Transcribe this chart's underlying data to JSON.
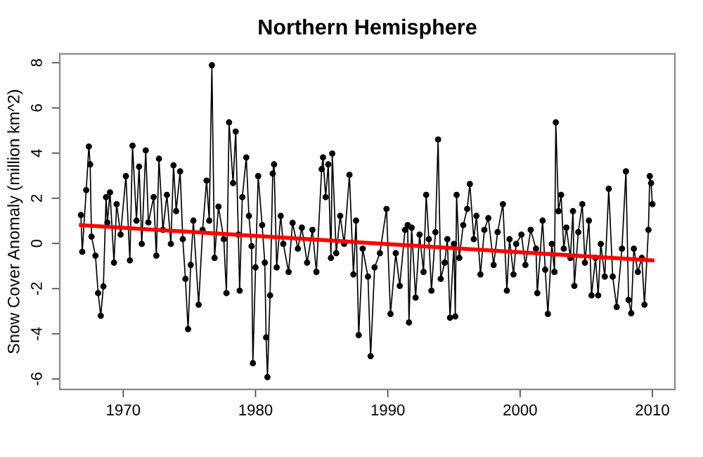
{
  "chart_data": {
    "type": "line",
    "title": "Northern Hemisphere",
    "ylabel": "Snow Cover Anomaly (million km^2)",
    "xlim": [
      1965.2,
      2011.7
    ],
    "ylim": [
      -6.46,
      8.39
    ],
    "xticks": [
      1970,
      1980,
      1990,
      2000,
      2010
    ],
    "yticks": [
      -6,
      -4,
      -2,
      0,
      2,
      4,
      6,
      8
    ],
    "grid": false,
    "line_style": "solid",
    "series": [
      {
        "color": "#000000",
        "marker": "circle",
        "x": [
          1966.8,
          1966.9,
          1967.2,
          1967.4,
          1967.5,
          1967.6,
          1967.9,
          1968.1,
          1968.3,
          1968.5,
          1968.7,
          1968.8,
          1969.0,
          1969.3,
          1969.5,
          1969.8,
          1970.2,
          1970.5,
          1970.7,
          1971.0,
          1971.2,
          1971.4,
          1971.7,
          1971.9,
          1972.3,
          1972.5,
          1972.7,
          1973.0,
          1973.3,
          1973.6,
          1973.8,
          1974.0,
          1974.3,
          1974.5,
          1974.7,
          1974.9,
          1975.1,
          1975.3,
          1975.7,
          1976.0,
          1976.3,
          1976.5,
          1976.7,
          1976.9,
          1977.2,
          1977.6,
          1977.8,
          1978.0,
          1978.3,
          1978.5,
          1978.7,
          1978.8,
          1979.0,
          1979.3,
          1979.5,
          1979.7,
          1979.8,
          1980.0,
          1980.2,
          1980.5,
          1980.7,
          1980.8,
          1980.9,
          1981.1,
          1981.3,
          1981.4,
          1981.6,
          1981.9,
          1982.1,
          1982.5,
          1982.8,
          1983.2,
          1983.5,
          1983.9,
          1984.3,
          1984.6,
          1985.0,
          1985.1,
          1985.3,
          1985.5,
          1985.7,
          1985.8,
          1986.1,
          1986.4,
          1986.7,
          1987.1,
          1987.4,
          1987.6,
          1987.8,
          1988.1,
          1988.5,
          1988.7,
          1989.0,
          1989.4,
          1989.9,
          1990.2,
          1990.6,
          1990.9,
          1991.3,
          1991.5,
          1991.6,
          1991.8,
          1992.1,
          1992.4,
          1992.7,
          1992.9,
          1993.1,
          1993.3,
          1993.6,
          1993.8,
          1994.0,
          1994.3,
          1994.5,
          1994.7,
          1995.0,
          1995.1,
          1995.2,
          1995.4,
          1995.7,
          1996.0,
          1996.2,
          1996.5,
          1996.7,
          1997.0,
          1997.3,
          1997.6,
          1998.0,
          1998.3,
          1998.7,
          1999.0,
          1999.2,
          1999.5,
          1999.7,
          2000.1,
          2000.4,
          2000.8,
          2001.2,
          2001.3,
          2001.7,
          2001.9,
          2002.1,
          2002.4,
          2002.6,
          2002.7,
          2002.9,
          2003.1,
          2003.3,
          2003.5,
          2003.8,
          2004.0,
          2004.1,
          2004.4,
          2004.7,
          2004.9,
          2005.2,
          2005.4,
          2005.7,
          2005.9,
          2006.1,
          2006.4,
          2006.7,
          2007.0,
          2007.3,
          2007.7,
          2008.0,
          2008.2,
          2008.4,
          2008.6,
          2008.9,
          2009.2,
          2009.4,
          2009.7,
          2009.8,
          2009.9,
          2010.0
        ],
        "values": [
          1.26,
          -0.37,
          2.36,
          4.29,
          3.5,
          0.3,
          -0.54,
          -2.2,
          -3.2,
          -1.9,
          2.05,
          0.93,
          2.26,
          -0.85,
          1.74,
          0.39,
          2.98,
          -0.75,
          4.33,
          1.01,
          3.4,
          -0.02,
          4.12,
          0.93,
          2.05,
          -0.54,
          3.75,
          0.6,
          2.15,
          -0.02,
          3.46,
          1.43,
          3.19,
          0.19,
          -1.57,
          -3.79,
          -0.95,
          1.01,
          -2.71,
          0.6,
          2.78,
          1.01,
          7.89,
          -0.64,
          1.63,
          0.19,
          -2.2,
          5.36,
          2.67,
          4.95,
          0.39,
          -2.09,
          2.05,
          3.81,
          1.22,
          -0.12,
          -5.3,
          -1.06,
          2.98,
          0.81,
          -0.85,
          -4.16,
          -5.92,
          -2.3,
          3.09,
          3.5,
          -1.06,
          1.22,
          -0.02,
          -1.26,
          0.91,
          -0.23,
          0.7,
          -0.85,
          0.6,
          -1.26,
          3.29,
          3.81,
          2.05,
          3.5,
          -0.64,
          3.98,
          -0.43,
          1.22,
          -0.02,
          3.04,
          -1.37,
          1.01,
          -4.06,
          -0.23,
          -1.47,
          -4.99,
          -1.06,
          -0.43,
          1.53,
          -3.12,
          -0.43,
          -1.88,
          0.6,
          0.81,
          -3.5,
          0.7,
          -2.4,
          0.39,
          -1.26,
          2.15,
          0.19,
          -2.09,
          0.5,
          4.6,
          -1.57,
          -0.85,
          0.19,
          -3.29,
          -0.02,
          -3.23,
          2.15,
          -0.64,
          0.81,
          1.53,
          2.63,
          0.19,
          1.22,
          -1.37,
          0.6,
          1.12,
          -0.95,
          0.5,
          1.74,
          -2.09,
          0.19,
          -1.37,
          -0.02,
          0.39,
          -0.95,
          0.6,
          -0.23,
          -2.2,
          1.01,
          -1.16,
          -3.12,
          -0.02,
          -1.26,
          5.36,
          1.43,
          2.15,
          -0.23,
          0.7,
          -0.64,
          1.43,
          -1.88,
          0.5,
          1.74,
          -0.85,
          1.01,
          -2.3,
          -0.64,
          -2.3,
          -0.02,
          -1.47,
          2.42,
          -1.47,
          -2.81,
          -0.23,
          3.19,
          -2.5,
          -3.09,
          -0.23,
          -1.26,
          -0.64,
          -2.71,
          0.6,
          2.98,
          2.67,
          1.74
        ]
      },
      {
        "color": "#ff0000",
        "marker": "none",
        "x": [
          1966.8,
          2010.0
        ],
        "values": [
          0.81,
          -0.75
        ]
      }
    ]
  }
}
